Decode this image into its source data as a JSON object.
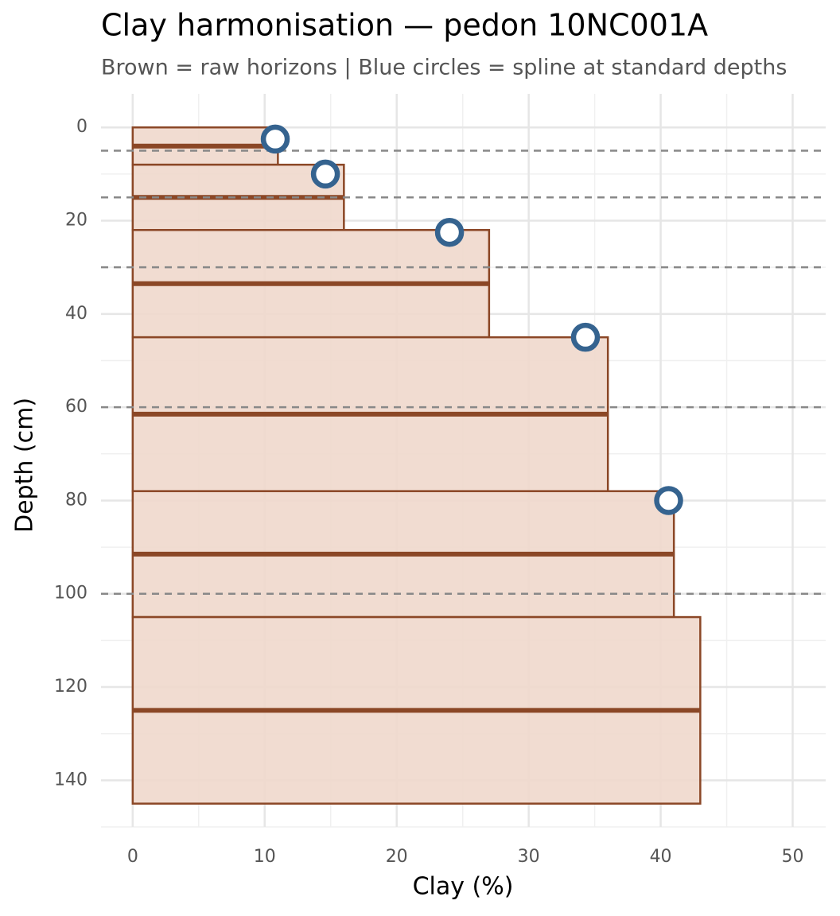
{
  "chart_data": {
    "type": "profile",
    "title": "Clay harmonisation — pedon 10NC001A",
    "subtitle": "Brown = raw horizons  |  Blue circles = spline at standard depths",
    "x_label": "Clay (%)",
    "y_label": "Depth (cm)",
    "horizons": {
      "color": "#8b4726",
      "fill": "#f0d8cc",
      "top": [
        0,
        8,
        22,
        45,
        78,
        105
      ],
      "bottom": [
        8,
        22,
        45,
        78,
        105,
        145
      ],
      "values": [
        11,
        16,
        27,
        36,
        41,
        43
      ]
    },
    "spline": {
      "color": "#35638f",
      "depth": [
        2.5,
        10,
        22.5,
        45,
        80
      ],
      "values": [
        10.8,
        14.6,
        24,
        34.3,
        40.6
      ]
    },
    "standard_depths": [
      5,
      15,
      30,
      60,
      100
    ],
    "xlim": [
      -2.4,
      52.5
    ],
    "xticks": [
      0,
      10,
      20,
      30,
      40,
      50
    ],
    "ylim": [
      -7.2,
      150
    ],
    "yticks": [
      0,
      20,
      40,
      60,
      80,
      100,
      120,
      140
    ],
    "y_reversed": true,
    "grid": true
  }
}
